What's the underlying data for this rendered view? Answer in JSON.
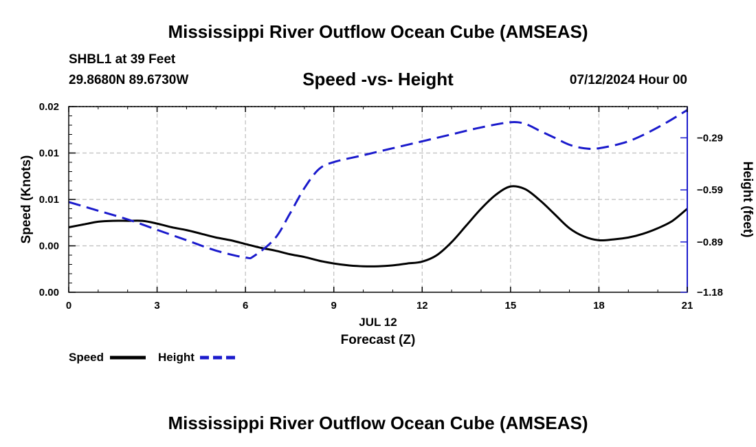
{
  "chart_data": {
    "type": "line",
    "title": "Mississippi River Outflow Ocean Cube (AMSEAS)",
    "footer_title": "Mississippi River Outflow Ocean Cube (AMSEAS)",
    "station": "SHBL1 at 39 Feet",
    "location": "29.8680N  89.6730W",
    "subtitle": "Speed -vs- Height",
    "date": "07/12/2024 Hour 00",
    "xlabel": "Forecast (Z)",
    "xdate_label": "JUL 12",
    "ylabel_left": "Speed (Knots)",
    "ylabel_right": "Height (feet)",
    "xlim": [
      0,
      21
    ],
    "ylim_left": [
      0,
      0.02
    ],
    "ylim_right": [
      -1.18,
      -0.11
    ],
    "x_ticks": [
      0,
      3,
      6,
      9,
      12,
      15,
      18,
      21
    ],
    "x_tick_labels": [
      "0",
      "3",
      "6",
      "9",
      "12",
      "15",
      "18",
      "21"
    ],
    "y_left_ticks": [
      0,
      0.005,
      0.01,
      0.015,
      0.02
    ],
    "y_left_tick_labels": [
      "0.00",
      "0.00",
      "0.01",
      "0.01",
      "0.02"
    ],
    "y_right_ticks": [
      -1.18,
      -0.89,
      -0.59,
      -0.29
    ],
    "y_right_tick_labels": [
      "−1.18",
      "−0.89",
      "−0.59",
      "−0.29"
    ],
    "grid": true,
    "legend": [
      {
        "label": "Speed",
        "color": "#000000",
        "style": "solid"
      },
      {
        "label": "Height",
        "color": "#1a1acc",
        "style": "dashed"
      }
    ],
    "series": [
      {
        "name": "Speed",
        "axis": "left",
        "color": "#000000",
        "x": [
          0,
          0.5,
          1,
          1.5,
          2,
          2.5,
          3,
          3.5,
          4,
          4.5,
          5,
          5.5,
          6,
          6.5,
          7,
          7.5,
          8,
          8.5,
          9,
          9.5,
          10,
          10.5,
          11,
          11.5,
          12,
          12.5,
          13,
          13.5,
          14,
          14.5,
          15,
          15.5,
          16,
          16.5,
          17,
          17.5,
          18,
          18.5,
          19,
          19.5,
          20,
          20.5,
          21
        ],
        "y": [
          0.007,
          0.0073,
          0.0076,
          0.0077,
          0.0077,
          0.0077,
          0.0074,
          0.007,
          0.0067,
          0.0063,
          0.0059,
          0.0056,
          0.0052,
          0.0048,
          0.0045,
          0.0041,
          0.0038,
          0.0034,
          0.0031,
          0.0029,
          0.0028,
          0.0028,
          0.0029,
          0.0031,
          0.0033,
          0.004,
          0.0054,
          0.0072,
          0.009,
          0.0105,
          0.0114,
          0.0111,
          0.0099,
          0.0084,
          0.0069,
          0.006,
          0.0056,
          0.0057,
          0.0059,
          0.0063,
          0.0069,
          0.0077,
          0.009
        ]
      },
      {
        "name": "Height",
        "axis": "right",
        "color": "#1a1acc",
        "x": [
          0,
          1,
          2,
          3,
          4,
          5,
          6,
          6.3,
          7,
          7.5,
          8,
          8.5,
          9,
          10,
          11,
          12,
          13,
          14,
          15,
          15.5,
          16,
          16.5,
          17,
          17.5,
          18,
          19,
          20,
          21
        ],
        "y": [
          -0.66,
          -0.71,
          -0.76,
          -0.82,
          -0.88,
          -0.94,
          -0.98,
          -0.97,
          -0.87,
          -0.73,
          -0.58,
          -0.47,
          -0.43,
          -0.39,
          -0.35,
          -0.31,
          -0.27,
          -0.23,
          -0.2,
          -0.21,
          -0.25,
          -0.29,
          -0.33,
          -0.35,
          -0.35,
          -0.31,
          -0.23,
          -0.13
        ]
      }
    ]
  }
}
